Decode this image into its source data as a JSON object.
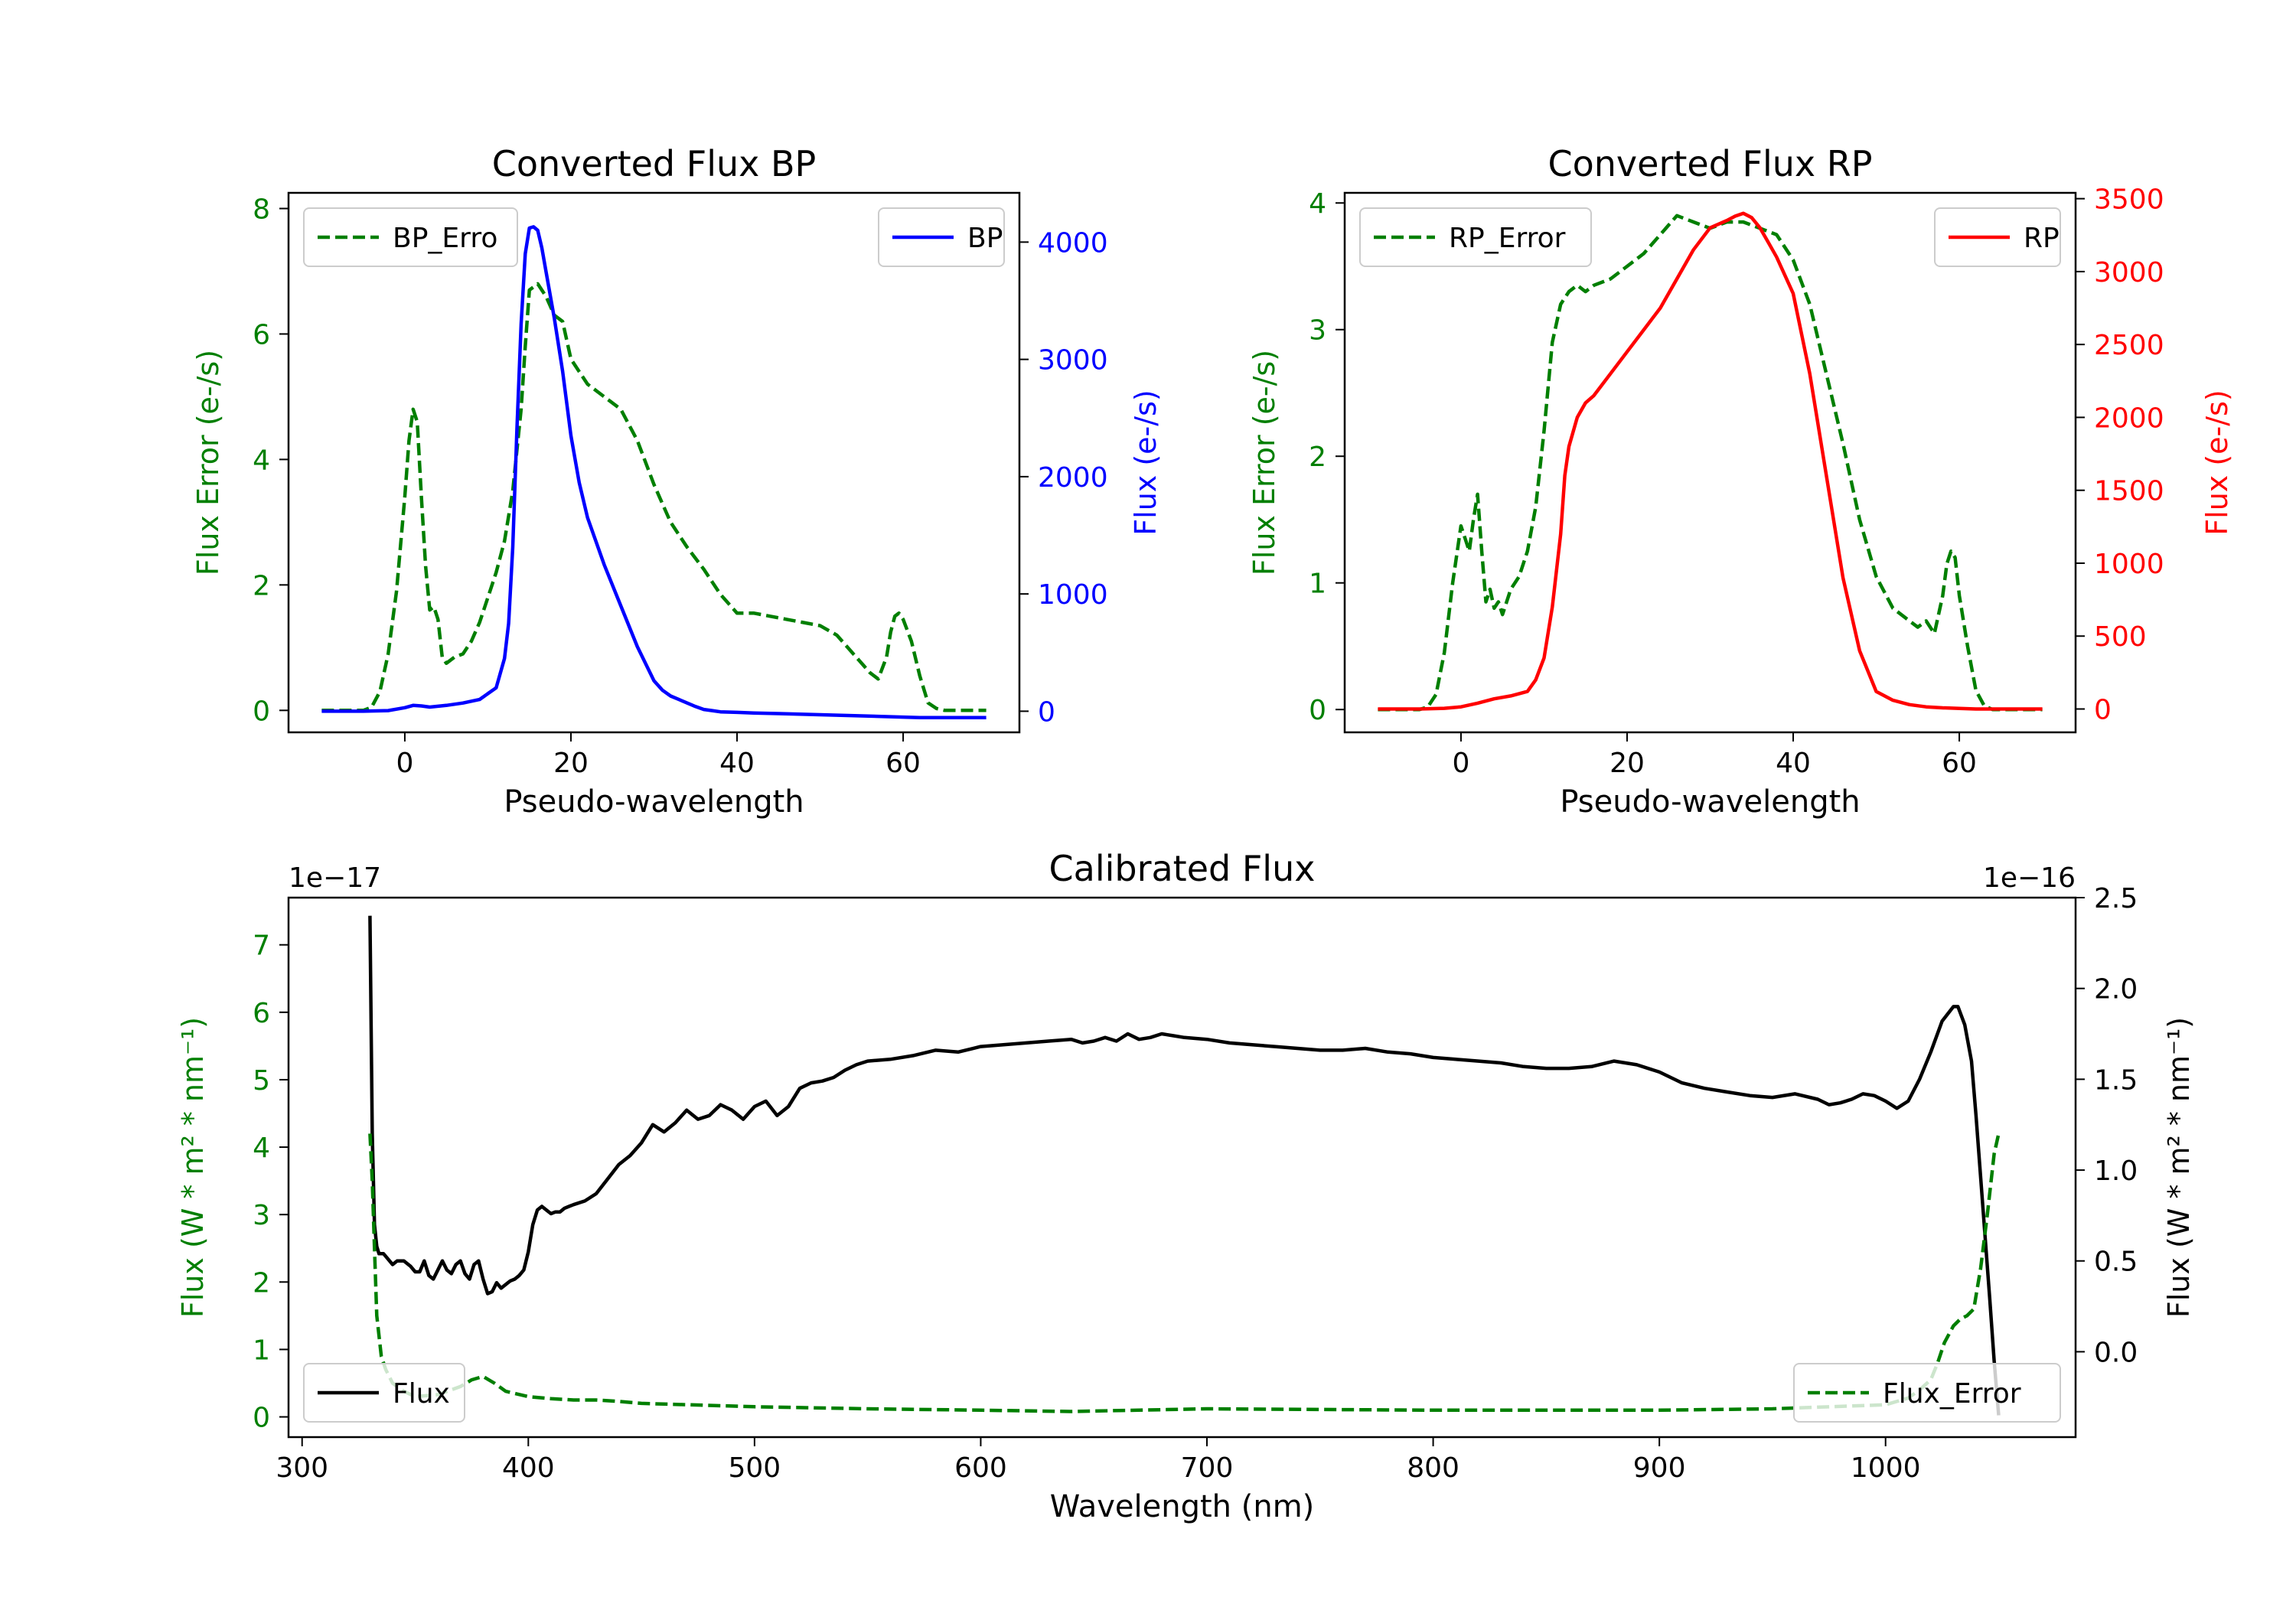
{
  "colors": {
    "green": "#007f00",
    "blue": "#0000ff",
    "red": "#ff0000",
    "black": "#000000"
  },
  "chart_data": [
    {
      "id": "bp",
      "type": "line",
      "title": "Converted Flux BP",
      "xlabel": "Pseudo-wavelength",
      "ylabel_left": "Flux Error (e-/s)",
      "ylabel_right": "Flux (e-/s)",
      "xlim": [
        -14,
        74
      ],
      "ylim_left": [
        -0.35,
        8.25
      ],
      "ylim_right": [
        -180,
        4420
      ],
      "xticks": [
        0,
        20,
        40,
        60
      ],
      "yticks_left": [
        0,
        2,
        4,
        6,
        8
      ],
      "yticks_right": [
        0,
        1000,
        2000,
        3000,
        4000
      ],
      "left_series": {
        "name": "BP_Error",
        "legend": "BP_Erro",
        "color": "green",
        "dash": true,
        "legend_pos": "upper-left",
        "x": [
          -10,
          -7,
          -5,
          -4,
          -3,
          -2,
          -1,
          0,
          0.5,
          1,
          1.5,
          2,
          2.5,
          3,
          3.5,
          4,
          4.5,
          5,
          6,
          7,
          8,
          9,
          10,
          11,
          12,
          13,
          14,
          14.5,
          15,
          16,
          17,
          18,
          19,
          20,
          21,
          22,
          24,
          26,
          28,
          30,
          32,
          34,
          36,
          38,
          40,
          42,
          44,
          46,
          48,
          50,
          52,
          54,
          56,
          57,
          58,
          58.5,
          59,
          59.5,
          60,
          61,
          62,
          63,
          64,
          65,
          66,
          70
        ],
        "y": [
          0,
          0,
          0,
          0.05,
          0.3,
          0.9,
          1.9,
          3.4,
          4.3,
          4.8,
          4.6,
          3.4,
          2.3,
          1.6,
          1.65,
          1.45,
          0.85,
          0.75,
          0.85,
          0.9,
          1.1,
          1.4,
          1.8,
          2.2,
          2.7,
          3.5,
          4.8,
          5.8,
          6.7,
          6.8,
          6.6,
          6.3,
          6.2,
          5.6,
          5.4,
          5.2,
          5.0,
          4.8,
          4.3,
          3.6,
          3.0,
          2.6,
          2.25,
          1.85,
          1.55,
          1.55,
          1.5,
          1.45,
          1.4,
          1.35,
          1.2,
          0.9,
          0.6,
          0.5,
          0.85,
          1.25,
          1.5,
          1.55,
          1.45,
          1.1,
          0.55,
          0.12,
          0.03,
          0,
          0,
          0
        ]
      },
      "right_series": {
        "name": "BP",
        "legend": "BP",
        "color": "blue",
        "dash": false,
        "legend_pos": "upper-right",
        "x": [
          -10,
          -5,
          -2,
          0,
          1,
          2,
          3,
          5,
          7,
          9,
          10,
          11,
          12,
          12.5,
          13,
          13.5,
          14,
          14.5,
          15,
          15.5,
          16,
          16.5,
          17,
          18,
          19,
          20,
          21,
          22,
          24,
          26,
          28,
          30,
          31,
          32,
          33,
          34,
          35,
          36,
          37,
          38,
          40,
          42,
          45,
          50,
          55,
          60,
          62,
          65,
          70
        ],
        "y": [
          0,
          0,
          5,
          30,
          50,
          45,
          35,
          50,
          70,
          100,
          150,
          200,
          450,
          750,
          1400,
          2400,
          3300,
          3900,
          4120,
          4130,
          4100,
          3950,
          3750,
          3350,
          2900,
          2350,
          1950,
          1650,
          1250,
          900,
          550,
          260,
          180,
          130,
          100,
          70,
          40,
          15,
          5,
          -5,
          -10,
          -15,
          -20,
          -30,
          -40,
          -50,
          -55,
          -55,
          -55
        ]
      }
    },
    {
      "id": "rp",
      "type": "line",
      "title": "Converted Flux RP",
      "xlabel": "Pseudo-wavelength",
      "ylabel_left": "Flux Error (e-/s)",
      "ylabel_right": "Flux (e-/s)",
      "xlim": [
        -14,
        74
      ],
      "ylim_left": [
        -0.18,
        4.08
      ],
      "ylim_right": [
        -160,
        3540
      ],
      "xticks": [
        0,
        20,
        40,
        60
      ],
      "yticks_left": [
        0,
        1,
        2,
        3,
        4
      ],
      "yticks_right": [
        0,
        500,
        1000,
        1500,
        2000,
        2500,
        3000,
        3500
      ],
      "left_series": {
        "name": "RP_Error",
        "legend": "RP_Error",
        "color": "green",
        "dash": true,
        "legend_pos": "upper-left",
        "x": [
          -10,
          -5,
          -4,
          -3,
          -2,
          -1,
          0,
          0.5,
          1,
          1.5,
          2,
          2.5,
          3,
          3.5,
          4,
          4.5,
          5,
          6,
          7,
          8,
          9,
          10,
          11,
          12,
          13,
          14,
          15,
          16,
          18,
          20,
          22,
          24,
          26,
          28,
          30,
          32,
          34,
          36,
          38,
          40,
          42,
          44,
          46,
          48,
          50,
          52,
          54,
          55,
          56,
          57,
          58,
          58.5,
          59,
          59.5,
          60,
          61,
          62,
          63,
          64,
          65,
          70
        ],
        "y": [
          0,
          0,
          0.02,
          0.12,
          0.45,
          1.0,
          1.45,
          1.35,
          1.25,
          1.5,
          1.7,
          1.25,
          0.85,
          0.95,
          0.8,
          0.85,
          0.75,
          0.95,
          1.05,
          1.25,
          1.6,
          2.2,
          2.9,
          3.2,
          3.3,
          3.35,
          3.3,
          3.35,
          3.4,
          3.5,
          3.6,
          3.75,
          3.9,
          3.85,
          3.8,
          3.85,
          3.85,
          3.8,
          3.75,
          3.55,
          3.2,
          2.65,
          2.1,
          1.5,
          1.05,
          0.8,
          0.7,
          0.65,
          0.7,
          0.6,
          0.9,
          1.15,
          1.25,
          1.2,
          0.9,
          0.5,
          0.15,
          0.03,
          0,
          0,
          0
        ]
      },
      "right_series": {
        "name": "RP",
        "legend": "RP",
        "color": "red",
        "dash": false,
        "legend_pos": "upper-right",
        "x": [
          -10,
          -5,
          -2,
          0,
          2,
          4,
          6,
          8,
          9,
          10,
          11,
          12,
          12.5,
          13,
          14,
          15,
          16,
          18,
          20,
          22,
          24,
          26,
          28,
          30,
          32,
          33,
          34,
          35,
          36,
          37,
          38,
          40,
          42,
          44,
          46,
          48,
          50,
          52,
          54,
          56,
          58,
          60,
          62,
          65,
          70
        ],
        "y": [
          0,
          0,
          5,
          15,
          40,
          70,
          90,
          120,
          200,
          350,
          700,
          1200,
          1600,
          1800,
          2000,
          2100,
          2150,
          2300,
          2450,
          2600,
          2750,
          2950,
          3150,
          3300,
          3350,
          3380,
          3400,
          3370,
          3300,
          3200,
          3100,
          2850,
          2300,
          1600,
          900,
          400,
          120,
          60,
          30,
          15,
          8,
          4,
          0,
          0,
          0
        ]
      }
    },
    {
      "id": "calibrated",
      "type": "line",
      "title": "Calibrated Flux",
      "xlabel": "Wavelength (nm)",
      "ylabel_left": "Flux (W * m² * nm⁻¹)",
      "ylabel_right": "Flux (W * m² * nm⁻¹)",
      "offset_left": "1e−17",
      "offset_right": "1e−16",
      "xlim": [
        294,
        1084
      ],
      "ylim_left": [
        -0.3,
        7.7
      ],
      "ylim_right": [
        -0.47,
        2.5
      ],
      "xticks": [
        300,
        400,
        500,
        600,
        700,
        800,
        900,
        1000
      ],
      "yticks_left": [
        0,
        1,
        2,
        3,
        4,
        5,
        6,
        7
      ],
      "yticks_right": [
        0.0,
        0.5,
        1.0,
        1.5,
        2.0,
        2.5
      ],
      "right_series": {
        "name": "Flux",
        "legend": "Flux",
        "color": "black",
        "dash": false,
        "legend_pos": "lower-left",
        "x": [
          330,
          331,
          332,
          333,
          334,
          336,
          338,
          340,
          342,
          345,
          348,
          350,
          352,
          354,
          356,
          358,
          360,
          362,
          364,
          366,
          368,
          370,
          372,
          374,
          376,
          378,
          380,
          382,
          384,
          386,
          388,
          390,
          392,
          394,
          396,
          398,
          400,
          402,
          404,
          406,
          408,
          410,
          412,
          414,
          416,
          418,
          420,
          425,
          430,
          435,
          440,
          445,
          450,
          455,
          460,
          465,
          470,
          475,
          480,
          485,
          490,
          495,
          500,
          505,
          510,
          515,
          520,
          525,
          530,
          535,
          540,
          545,
          550,
          560,
          570,
          580,
          590,
          600,
          610,
          620,
          630,
          640,
          645,
          650,
          655,
          660,
          665,
          670,
          675,
          680,
          685,
          690,
          700,
          710,
          720,
          730,
          740,
          750,
          760,
          770,
          780,
          790,
          800,
          810,
          820,
          830,
          840,
          850,
          860,
          870,
          880,
          885,
          890,
          900,
          910,
          920,
          930,
          940,
          950,
          960,
          970,
          975,
          980,
          985,
          990,
          995,
          1000,
          1005,
          1010,
          1015,
          1020,
          1025,
          1030,
          1032,
          1035,
          1038,
          1040,
          1043,
          1046,
          1048,
          1050
        ],
        "y": [
          2.4,
          1.2,
          0.7,
          0.58,
          0.54,
          0.54,
          0.51,
          0.48,
          0.5,
          0.5,
          0.47,
          0.44,
          0.44,
          0.5,
          0.42,
          0.4,
          0.45,
          0.5,
          0.45,
          0.43,
          0.48,
          0.5,
          0.43,
          0.4,
          0.48,
          0.5,
          0.4,
          0.32,
          0.33,
          0.38,
          0.35,
          0.37,
          0.39,
          0.4,
          0.42,
          0.45,
          0.55,
          0.7,
          0.78,
          0.8,
          0.78,
          0.76,
          0.77,
          0.77,
          0.79,
          0.8,
          0.81,
          0.83,
          0.87,
          0.95,
          1.03,
          1.08,
          1.15,
          1.25,
          1.21,
          1.26,
          1.33,
          1.28,
          1.3,
          1.36,
          1.33,
          1.28,
          1.35,
          1.38,
          1.3,
          1.35,
          1.45,
          1.48,
          1.49,
          1.51,
          1.55,
          1.58,
          1.6,
          1.61,
          1.63,
          1.66,
          1.65,
          1.68,
          1.69,
          1.7,
          1.71,
          1.72,
          1.7,
          1.71,
          1.73,
          1.71,
          1.75,
          1.72,
          1.73,
          1.75,
          1.74,
          1.73,
          1.72,
          1.7,
          1.69,
          1.68,
          1.67,
          1.66,
          1.66,
          1.67,
          1.65,
          1.64,
          1.62,
          1.61,
          1.6,
          1.59,
          1.57,
          1.56,
          1.56,
          1.57,
          1.6,
          1.59,
          1.58,
          1.54,
          1.48,
          1.45,
          1.43,
          1.41,
          1.4,
          1.42,
          1.39,
          1.36,
          1.37,
          1.39,
          1.42,
          1.41,
          1.38,
          1.34,
          1.38,
          1.5,
          1.65,
          1.82,
          1.9,
          1.9,
          1.8,
          1.6,
          1.3,
          0.8,
          0.3,
          -0.05,
          -0.35
        ]
      },
      "left_series": {
        "name": "Flux_Error",
        "legend": "Flux_Error",
        "color": "green",
        "dash": true,
        "legend_pos": "lower-right",
        "x": [
          330,
          331,
          332,
          333,
          335,
          337,
          340,
          345,
          350,
          360,
          370,
          375,
          380,
          385,
          390,
          400,
          410,
          420,
          430,
          440,
          450,
          500,
          550,
          600,
          640,
          700,
          800,
          900,
          950,
          1000,
          1010,
          1015,
          1020,
          1023,
          1026,
          1030,
          1033,
          1036,
          1039,
          1042,
          1045,
          1048,
          1050
        ],
        "y": [
          4.2,
          3.5,
          2.5,
          1.5,
          0.9,
          0.7,
          0.5,
          0.38,
          0.3,
          0.33,
          0.45,
          0.55,
          0.6,
          0.5,
          0.38,
          0.3,
          0.27,
          0.25,
          0.25,
          0.23,
          0.2,
          0.15,
          0.12,
          0.1,
          0.08,
          0.12,
          0.1,
          0.1,
          0.12,
          0.18,
          0.28,
          0.4,
          0.55,
          0.8,
          1.1,
          1.35,
          1.45,
          1.5,
          1.6,
          2.2,
          3.0,
          3.9,
          4.2
        ]
      }
    }
  ]
}
